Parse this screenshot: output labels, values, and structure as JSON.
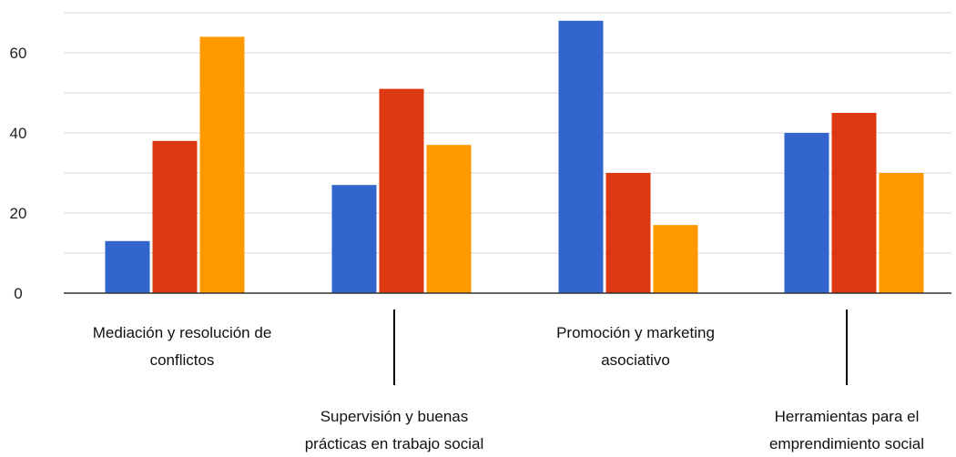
{
  "chart_data": {
    "type": "bar",
    "title": "",
    "xlabel": "",
    "ylabel": "",
    "categories": [
      [
        "Mediación y resolución de",
        "conflictos"
      ],
      [
        "Supervisión y buenas",
        "prácticas en trabajo social"
      ],
      [
        "Promoción y marketing",
        "asociativo"
      ],
      [
        "Herramientas para el",
        "emprendimiento social"
      ]
    ],
    "series": [
      {
        "color": "#3366cc",
        "values": [
          13,
          27,
          68,
          40
        ]
      },
      {
        "color": "#dc3912",
        "values": [
          38,
          51,
          30,
          45
        ]
      },
      {
        "color": "#ff9900",
        "values": [
          64,
          37,
          17,
          30
        ]
      }
    ],
    "ylim": [
      0,
      70
    ],
    "yticks": [
      0,
      20,
      40,
      60
    ],
    "grid": true,
    "legend": "none"
  }
}
